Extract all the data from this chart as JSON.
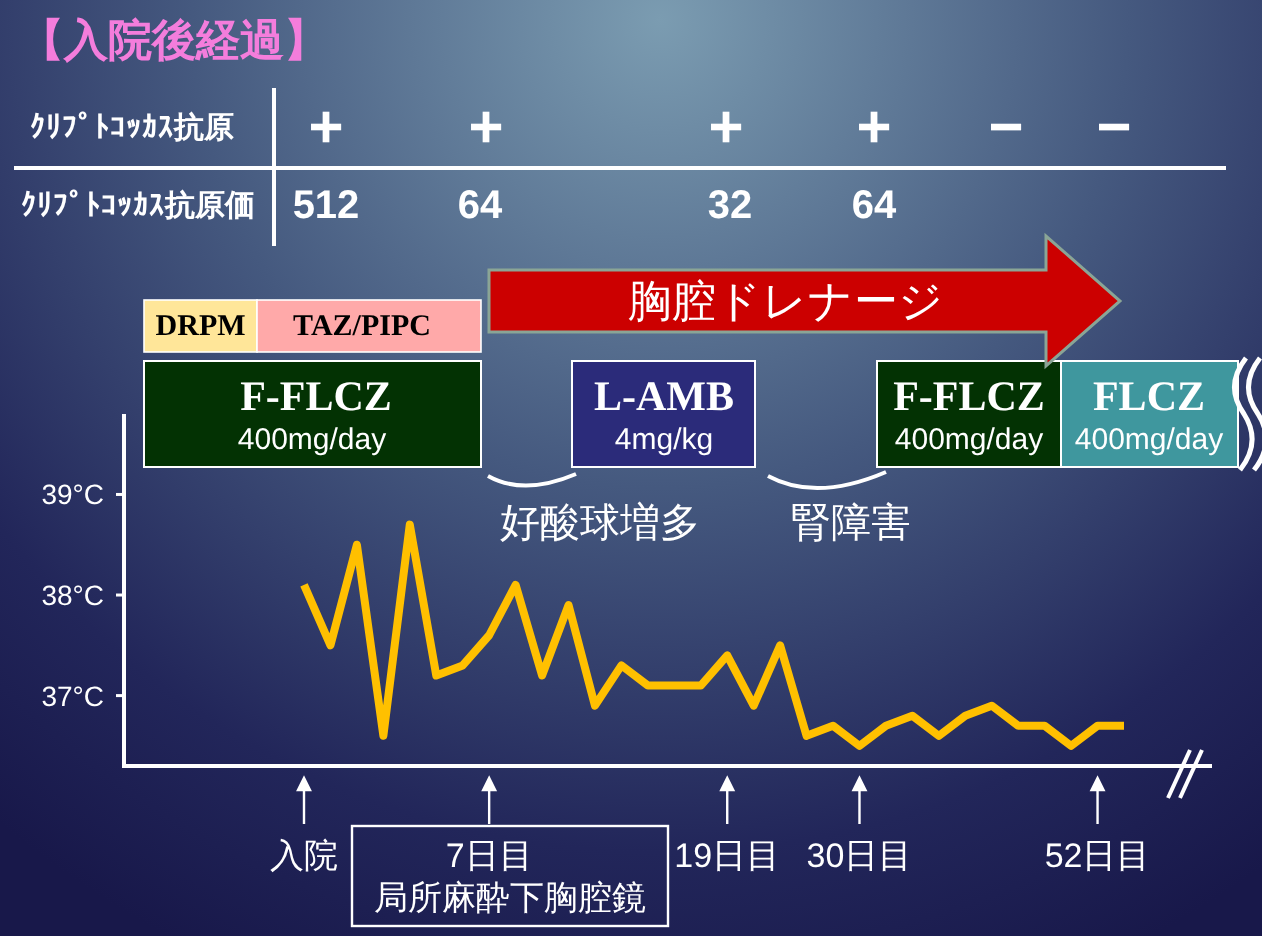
{
  "chart_data": {
    "type": "line",
    "title": "【入院後経過】",
    "categories": [
      "入院",
      null,
      null,
      null,
      null,
      null,
      null,
      "7日目",
      null,
      null,
      null,
      null,
      null,
      null,
      null,
      null,
      "19日目",
      null,
      null,
      null,
      null,
      "30日目",
      null,
      null,
      null,
      null,
      null,
      null,
      null,
      null,
      "52日目",
      null
    ],
    "series": [
      {
        "color": "#ffc000",
        "values": [
          38.1,
          37.5,
          38.5,
          36.6,
          38.7,
          37.2,
          37.3,
          37.6,
          38.1,
          37.2,
          37.9,
          36.9,
          37.3,
          37.1,
          37.1,
          37.1,
          37.4,
          36.9,
          37.5,
          36.6,
          36.7,
          36.5,
          36.7,
          36.8,
          36.6,
          36.8,
          36.9,
          36.7,
          36.7,
          36.5,
          36.7,
          36.7
        ]
      }
    ],
    "ylim": [
      36.3,
      39.8
    ],
    "yticks": [
      {
        "value": 37,
        "label": "37°C"
      },
      {
        "value": 38,
        "label": "38°C"
      },
      {
        "value": 39,
        "label": "39°C"
      }
    ],
    "annotations": [
      "ｸﾘﾌﾟﾄｺｯｶｽ抗原",
      "ｸﾘﾌﾟﾄｺｯｶｽ抗原価",
      "+",
      "+",
      "+",
      "+",
      "−",
      "−",
      "512",
      "64",
      "32",
      "64",
      "DRPM",
      "TAZ/PIPC",
      "F-FLCZ",
      "400mg/day",
      "L-AMB",
      "4mg/kg",
      "F-FLCZ",
      "400mg/day",
      "FLCZ",
      "400mg/day",
      "胸腔ドレナージ",
      "好酸球増多",
      "腎障害",
      "局所麻酔下胸腔鏡"
    ]
  }
}
